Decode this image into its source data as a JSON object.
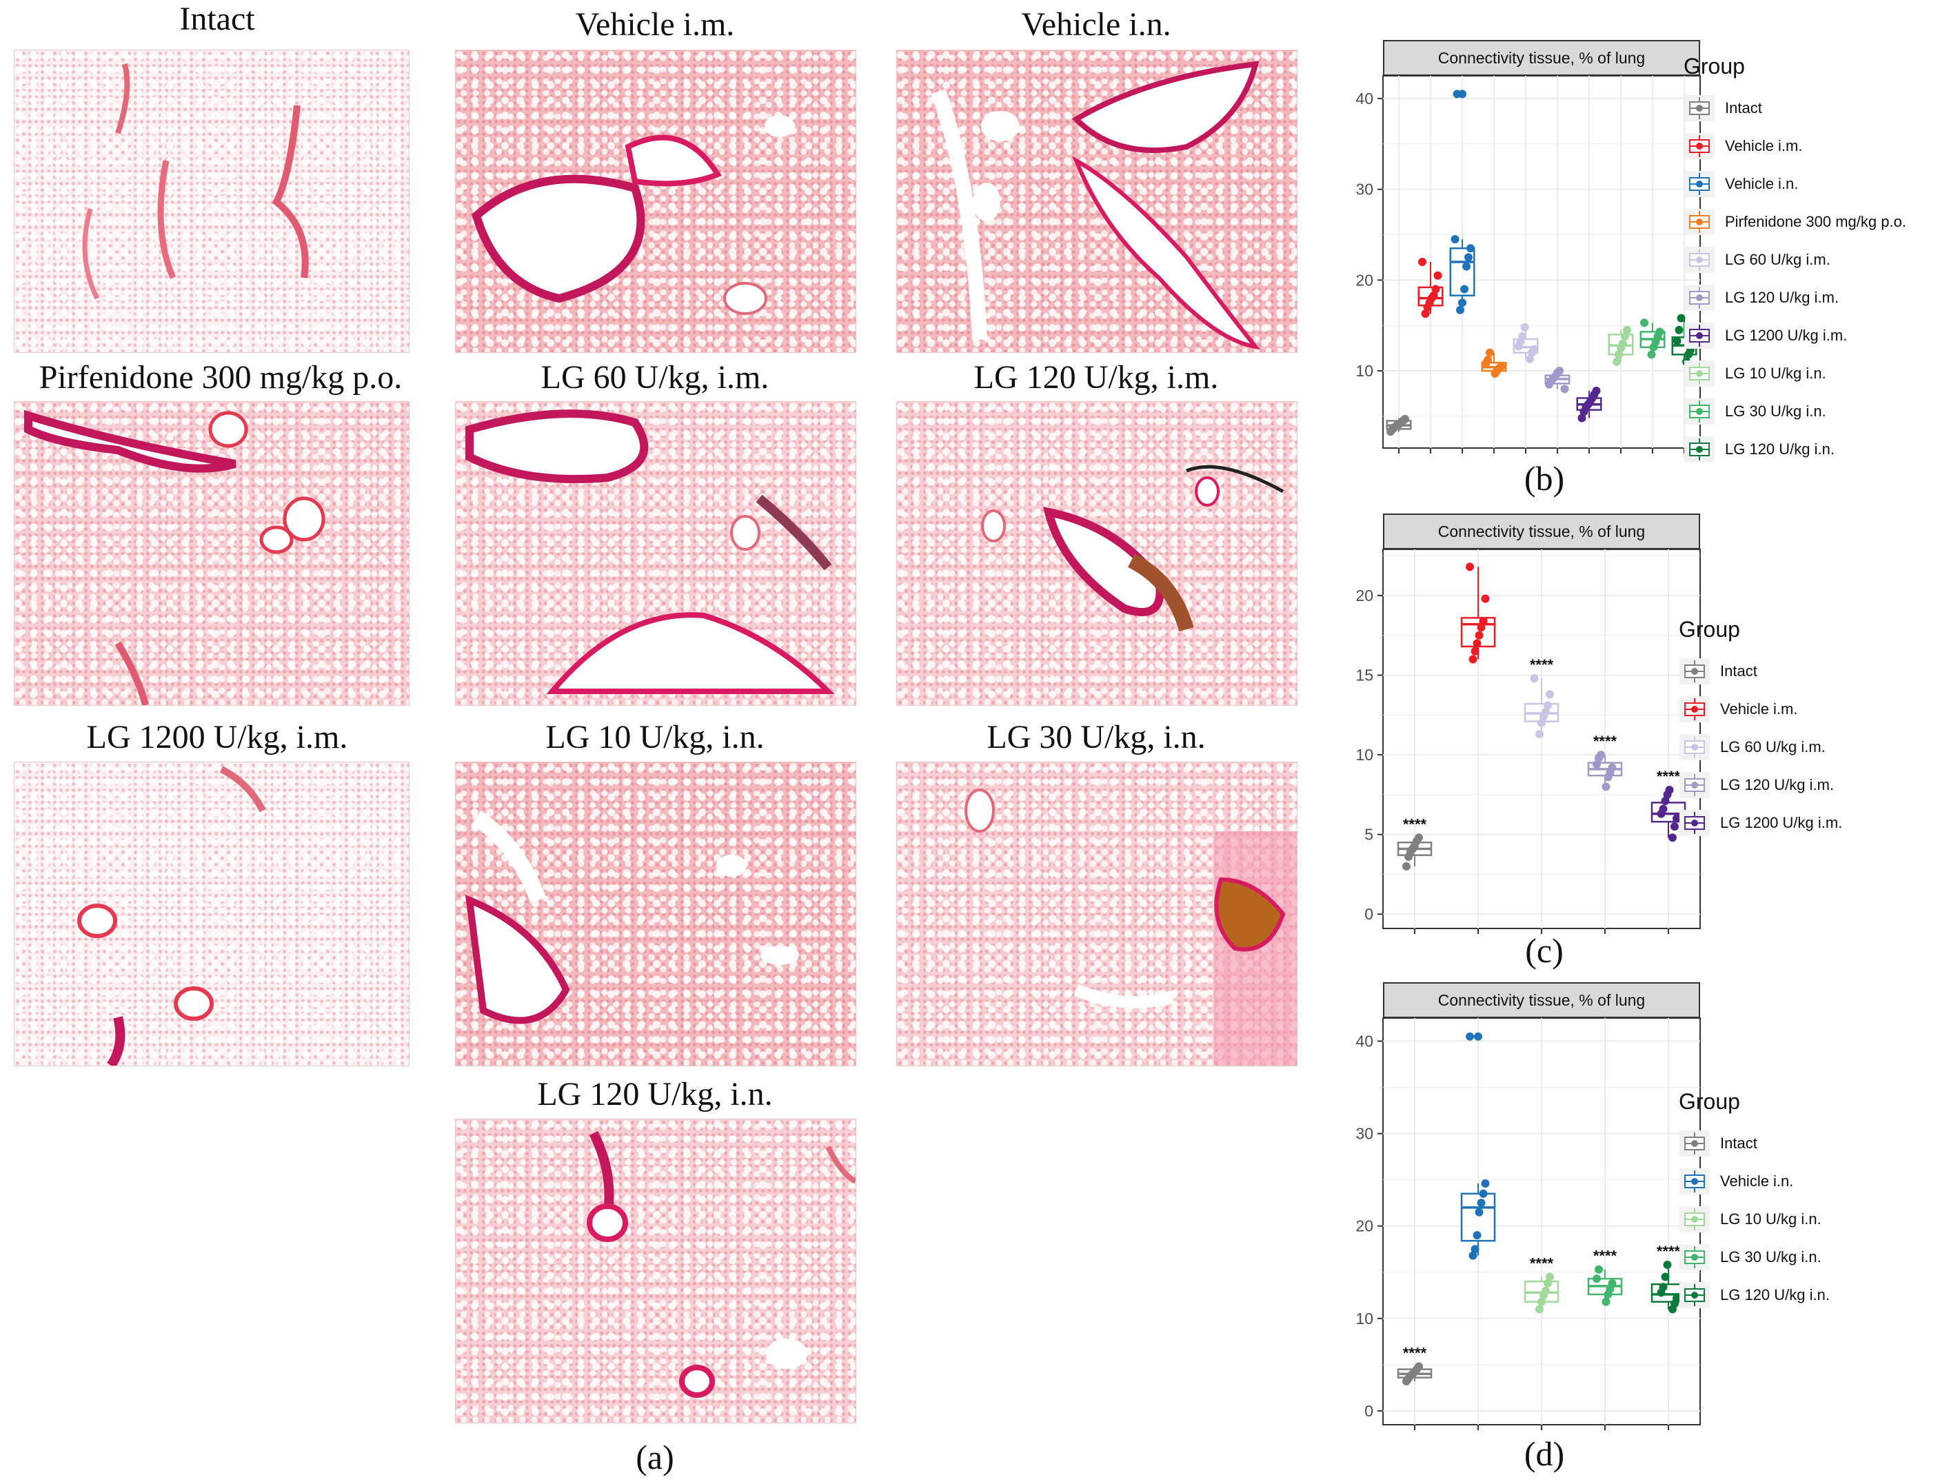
{
  "panel_a": {
    "label": "(a)",
    "images": [
      {
        "title": "Intact"
      },
      {
        "title": "Vehicle i.m."
      },
      {
        "title": "Vehicle i.n."
      },
      {
        "title": "Pirfenidone  300  mg/kg  p.o."
      },
      {
        "title": "LG 60 U/kg, i.m."
      },
      {
        "title": "LG 120 U/kg, i.m."
      },
      {
        "title": "LG 1200 U/kg, i.m."
      },
      {
        "title": "LG 10 U/kg, i.n."
      },
      {
        "title": "LG 30 U/kg, i.n."
      },
      {
        "title": "LG 120 U/kg, i.n."
      }
    ]
  },
  "chart_data": [
    {
      "panel": "(b)",
      "type": "box",
      "strip_title": "Connectivity tissue, % of lung",
      "legend_title": "Group",
      "ylim": [
        1.5,
        42.5
      ],
      "yticks": [
        10,
        20,
        30,
        40
      ],
      "series": [
        {
          "name": "Intact",
          "color": "#808080",
          "median": 4.0,
          "q1": 3.6,
          "q3": 4.5,
          "whisker_low": 3.3,
          "whisker_high": 4.8,
          "points": [
            3.3,
            3.6,
            3.8,
            4.0,
            4.1,
            4.3,
            4.5,
            4.7
          ]
        },
        {
          "name": "Vehicle i.m.",
          "color": "#ee1c25",
          "median": 18.0,
          "q1": 17.2,
          "q3": 19.2,
          "whisker_low": 16.3,
          "whisker_high": 22.0,
          "points": [
            16.3,
            17.0,
            17.5,
            18.0,
            18.3,
            19.0,
            20.5,
            22.0
          ]
        },
        {
          "name": "Vehicle i.n.",
          "color": "#1f73b8",
          "median": 22.0,
          "q1": 18.3,
          "q3": 23.5,
          "whisker_low": 16.7,
          "whisker_high": 24.5,
          "points": [
            16.7,
            17.5,
            19.0,
            21.5,
            22.5,
            23.5,
            24.5,
            40.5
          ],
          "outliers": [
            40.5
          ]
        },
        {
          "name": "Pirfenidone 300 mg/kg p.o.",
          "color": "#f47c20",
          "median": 10.4,
          "q1": 10.0,
          "q3": 10.9,
          "whisker_low": 9.7,
          "whisker_high": 12.0,
          "points": [
            9.7,
            10.0,
            10.3,
            10.5,
            10.8,
            11.2,
            12.0
          ]
        },
        {
          "name": "LG 60 U/kg i.m.",
          "color": "#c9c5e6",
          "median": 12.6,
          "q1": 12.0,
          "q3": 13.5,
          "whisker_low": 11.3,
          "whisker_high": 14.8,
          "points": [
            11.3,
            12.0,
            12.4,
            12.7,
            13.2,
            13.8,
            14.8
          ]
        },
        {
          "name": "LG 120 U/kg i.m.",
          "color": "#9e9ac8",
          "median": 9.1,
          "q1": 8.6,
          "q3": 9.5,
          "whisker_low": 8.0,
          "whisker_high": 10.0,
          "points": [
            8.0,
            8.5,
            8.9,
            9.2,
            9.4,
            9.8,
            10.0
          ]
        },
        {
          "name": "LG 1200 U/kg i.m.",
          "color": "#54278f",
          "median": 6.3,
          "q1": 5.7,
          "q3": 7.0,
          "whisker_low": 4.8,
          "whisker_high": 7.8,
          "points": [
            4.8,
            5.5,
            6.0,
            6.3,
            6.6,
            7.0,
            7.4,
            7.8
          ]
        },
        {
          "name": "LG 10 U/kg i.n.",
          "color": "#a1d99b",
          "median": 12.8,
          "q1": 11.8,
          "q3": 14.0,
          "whisker_low": 11.0,
          "whisker_high": 14.5,
          "points": [
            11.0,
            11.8,
            12.5,
            13.0,
            13.8,
            14.5
          ]
        },
        {
          "name": "LG 30 U/kg i.n.",
          "color": "#41b66c",
          "median": 13.5,
          "q1": 12.6,
          "q3": 14.3,
          "whisker_low": 11.8,
          "whisker_high": 15.3,
          "points": [
            11.8,
            12.6,
            13.2,
            13.8,
            14.3,
            15.3
          ]
        },
        {
          "name": "LG 120 U/kg i.n.",
          "color": "#0b7a3b",
          "median": 12.8,
          "q1": 11.8,
          "q3": 13.7,
          "whisker_low": 11.0,
          "whisker_high": 15.8,
          "points": [
            11.0,
            11.8,
            12.3,
            12.8,
            13.3,
            14.5,
            15.8
          ]
        }
      ]
    },
    {
      "panel": "(c)",
      "type": "box",
      "strip_title": "Connectivity tissue, % of lung",
      "legend_title": "Group",
      "ylim": [
        -0.9,
        22.9
      ],
      "yticks": [
        0,
        5,
        10,
        15,
        20
      ],
      "series": [
        {
          "name": "Intact",
          "color": "#808080",
          "median": 4.1,
          "q1": 3.7,
          "q3": 4.5,
          "whisker_low": 3.0,
          "whisker_high": 4.8,
          "points": [
            3.0,
            3.6,
            3.9,
            4.1,
            4.3,
            4.6,
            4.8
          ],
          "annotation": "****"
        },
        {
          "name": "Vehicle i.m.",
          "color": "#ee1c25",
          "median": 18.2,
          "q1": 16.8,
          "q3": 18.6,
          "whisker_low": 16.0,
          "whisker_high": 21.8,
          "points": [
            16.0,
            16.5,
            17.0,
            17.5,
            18.0,
            18.4,
            19.8,
            21.8
          ]
        },
        {
          "name": "LG 60 U/kg i.m.",
          "color": "#c9c5e6",
          "median": 12.6,
          "q1": 12.1,
          "q3": 13.2,
          "whisker_low": 11.3,
          "whisker_high": 14.8,
          "points": [
            11.3,
            12.0,
            12.4,
            12.7,
            13.1,
            13.8,
            14.8
          ],
          "annotation": "****"
        },
        {
          "name": "LG 120 U/kg i.m.",
          "color": "#9e9ac8",
          "median": 9.1,
          "q1": 8.7,
          "q3": 9.5,
          "whisker_low": 8.0,
          "whisker_high": 10.0,
          "points": [
            8.0,
            8.6,
            8.9,
            9.2,
            9.4,
            9.8,
            10.0
          ],
          "annotation": "****"
        },
        {
          "name": "LG 1200 U/kg i.m.",
          "color": "#54278f",
          "median": 6.3,
          "q1": 5.8,
          "q3": 7.0,
          "whisker_low": 4.8,
          "whisker_high": 7.8,
          "points": [
            4.8,
            5.5,
            6.0,
            6.3,
            6.6,
            7.1,
            7.5,
            7.8
          ],
          "annotation": "****"
        }
      ]
    },
    {
      "panel": "(d)",
      "type": "box",
      "strip_title": "Connectivity tissue, % of lung",
      "legend_title": "Group",
      "ylim": [
        -1.5,
        42.5
      ],
      "yticks": [
        0,
        10,
        20,
        30,
        40
      ],
      "series": [
        {
          "name": "Intact",
          "color": "#808080",
          "median": 4.0,
          "q1": 3.6,
          "q3": 4.5,
          "whisker_low": 3.2,
          "whisker_high": 4.8,
          "points": [
            3.2,
            3.5,
            3.8,
            4.0,
            4.2,
            4.5,
            4.8
          ],
          "annotation": "****"
        },
        {
          "name": "Vehicle i.n.",
          "color": "#1f73b8",
          "median": 22.0,
          "q1": 18.4,
          "q3": 23.5,
          "whisker_low": 16.8,
          "whisker_high": 24.6,
          "points": [
            16.8,
            17.5,
            19.0,
            21.5,
            22.5,
            23.5,
            24.6,
            40.5
          ],
          "outliers": [
            40.5
          ]
        },
        {
          "name": "LG 10 U/kg i.n.",
          "color": "#a1d99b",
          "median": 12.8,
          "q1": 11.8,
          "q3": 14.0,
          "whisker_low": 11.0,
          "whisker_high": 14.5,
          "points": [
            11.0,
            11.8,
            12.5,
            13.0,
            13.8,
            14.5
          ],
          "annotation": "****"
        },
        {
          "name": "LG 30 U/kg i.n.",
          "color": "#41b66c",
          "median": 13.5,
          "q1": 12.6,
          "q3": 14.3,
          "whisker_low": 11.8,
          "whisker_high": 15.3,
          "points": [
            11.8,
            12.6,
            13.2,
            13.8,
            14.3,
            15.3
          ],
          "annotation": "****"
        },
        {
          "name": "LG 120 U/kg i.n.",
          "color": "#0b7a3b",
          "median": 12.6,
          "q1": 11.8,
          "q3": 13.7,
          "whisker_low": 11.0,
          "whisker_high": 15.8,
          "points": [
            11.0,
            11.6,
            12.2,
            12.8,
            13.4,
            14.5,
            15.8
          ],
          "annotation": "****"
        }
      ]
    }
  ]
}
